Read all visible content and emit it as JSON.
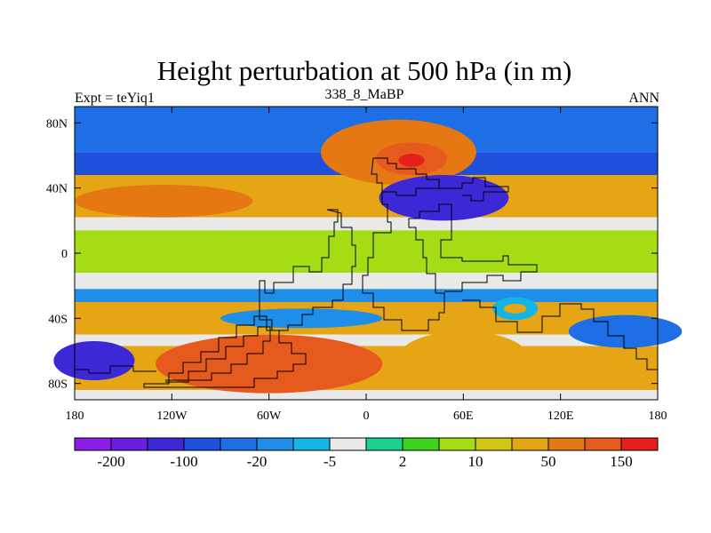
{
  "chart_data": {
    "type": "heatmap",
    "title": "Height perturbation at 500 hPa (in m)",
    "left_label": "Expt = teYiq1",
    "center_label": "338_8_MaBP",
    "right_label": "ANN",
    "x_ticks": [
      {
        "value": -180,
        "label": "180"
      },
      {
        "value": -120,
        "label": "120W"
      },
      {
        "value": -60,
        "label": "60W"
      },
      {
        "value": 0,
        "label": "0"
      },
      {
        "value": 60,
        "label": "60E"
      },
      {
        "value": 120,
        "label": "120E"
      },
      {
        "value": 180,
        "label": "180"
      }
    ],
    "y_ticks": [
      {
        "value": 80,
        "label": "80N"
      },
      {
        "value": 40,
        "label": "40N"
      },
      {
        "value": 0,
        "label": "0"
      },
      {
        "value": -40,
        "label": "40S"
      },
      {
        "value": -80,
        "label": "80S"
      }
    ],
    "xlim": [
      -180,
      180
    ],
    "ylim": [
      -90,
      90
    ],
    "colorbar": {
      "levels": [
        -250,
        -200,
        -150,
        -100,
        -50,
        -20,
        -10,
        -5,
        -2,
        2,
        5,
        10,
        20,
        50,
        100,
        150,
        200
      ],
      "colors": [
        "#8a1ee6",
        "#6a1ee0",
        "#3c28d6",
        "#1e50dc",
        "#1e6ee6",
        "#1e8ee8",
        "#14b4e6",
        "#e9e9e9",
        "#19d28c",
        "#3cd21e",
        "#a5dc14",
        "#d2c814",
        "#e6a514",
        "#e67814",
        "#e65a1e",
        "#e61e1e"
      ],
      "labels": [
        {
          "level": -200,
          "text": "-200"
        },
        {
          "level": -100,
          "text": "-100"
        },
        {
          "level": -20,
          "text": "-20"
        },
        {
          "level": -5,
          "text": "-5"
        },
        {
          "level": 2,
          "text": "2"
        },
        {
          "level": 10,
          "text": "10"
        },
        {
          "level": 50,
          "text": "50"
        },
        {
          "level": 150,
          "text": "150"
        }
      ]
    },
    "field": {
      "zonal_bands": [
        {
          "lat_min": 62,
          "lat_max": 90,
          "value": -40
        },
        {
          "lat_min": 48,
          "lat_max": 62,
          "value": -60
        },
        {
          "lat_min": 22,
          "lat_max": 48,
          "value": 30
        },
        {
          "lat_min": 14,
          "lat_max": 22,
          "value": -3
        },
        {
          "lat_min": -12,
          "lat_max": 14,
          "value": 8
        },
        {
          "lat_min": -22,
          "lat_max": -12,
          "value": -3
        },
        {
          "lat_min": -30,
          "lat_max": -22,
          "value": -15
        },
        {
          "lat_min": -50,
          "lat_max": -30,
          "value": 30
        },
        {
          "lat_min": -57,
          "lat_max": -50,
          "value": -3
        },
        {
          "lat_min": -84,
          "lat_max": -57,
          "value": 40
        },
        {
          "lat_min": -90,
          "lat_max": -84,
          "value": -3
        }
      ],
      "features": [
        {
          "lon": 20,
          "lat": 62,
          "rlon": 48,
          "rlat": 20,
          "value": 60
        },
        {
          "lon": 28,
          "lat": 58,
          "rlon": 22,
          "rlat": 10,
          "value": 120
        },
        {
          "lon": 28,
          "lat": 57,
          "rlon": 8,
          "rlat": 4,
          "value": 160
        },
        {
          "lon": -125,
          "lat": 32,
          "rlon": 55,
          "rlat": 10,
          "value": 60
        },
        {
          "lon": 48,
          "lat": 34,
          "rlon": 40,
          "rlat": 14,
          "value": -110
        },
        {
          "lon": 135,
          "lat": 36,
          "rlon": 25,
          "rlat": 10,
          "value": 40
        },
        {
          "lon": -60,
          "lat": -68,
          "rlon": 70,
          "rlat": 18,
          "value": 120
        },
        {
          "lon": 60,
          "lat": -64,
          "rlon": 40,
          "rlat": 16,
          "value": 40
        },
        {
          "lon": -168,
          "lat": -66,
          "rlon": 25,
          "rlat": 12,
          "value": -110
        },
        {
          "lon": -40,
          "lat": -40,
          "rlon": 50,
          "rlat": 6,
          "value": -15
        },
        {
          "lon": 92,
          "lat": -34,
          "rlon": 14,
          "rlat": 7,
          "value": -10
        },
        {
          "lon": 92,
          "lat": -34,
          "rlon": 7,
          "rlat": 3,
          "value": 30
        },
        {
          "lon": 160,
          "lat": -48,
          "rlon": 35,
          "rlat": 10,
          "value": -30
        }
      ]
    }
  }
}
